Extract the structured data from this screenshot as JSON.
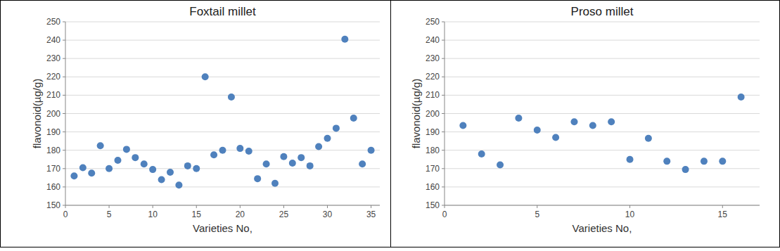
{
  "chart_data": [
    {
      "type": "scatter",
      "title": "Foxtail millet",
      "x_label": "Varieties No,",
      "y_label": "flavonoid(µg/g)",
      "x": [
        1,
        2,
        3,
        4,
        5,
        6,
        7,
        8,
        9,
        10,
        11,
        12,
        13,
        14,
        15,
        16,
        17,
        18,
        19,
        20,
        21,
        22,
        23,
        24,
        25,
        26,
        27,
        28,
        29,
        30,
        31,
        32,
        33,
        34,
        35
      ],
      "values": [
        166,
        170.5,
        167.5,
        182.5,
        170,
        174.5,
        180.5,
        176,
        172.5,
        169.5,
        164,
        168,
        161,
        171.5,
        170,
        220,
        177.5,
        180,
        209,
        181,
        179.5,
        164.5,
        172.5,
        162,
        176.5,
        173,
        176,
        171.5,
        182,
        186.5,
        192,
        240.5,
        197.5,
        172.5,
        180
      ],
      "xlim": [
        0,
        36
      ],
      "ylim": [
        150,
        250
      ],
      "xticks": [
        0,
        5,
        10,
        15,
        20,
        25,
        30,
        35
      ],
      "yticks": [
        150,
        160,
        170,
        180,
        190,
        200,
        210,
        220,
        230,
        240,
        250
      ],
      "grid": true,
      "color": "#4f81bd",
      "marker": "circle"
    },
    {
      "type": "scatter",
      "title": "Proso millet",
      "x_label": "Varieties No,",
      "y_label": "flavonoid(µg/g)",
      "x": [
        1,
        2,
        3,
        4,
        5,
        6,
        7,
        8,
        9,
        10,
        11,
        12,
        13,
        14,
        15,
        16
      ],
      "values": [
        193.5,
        178,
        172,
        197.5,
        191,
        187,
        195.5,
        193.5,
        195.5,
        175,
        186.5,
        174,
        169.5,
        174,
        174,
        209
      ],
      "xlim": [
        0,
        17
      ],
      "ylim": [
        150,
        250
      ],
      "xticks": [
        0,
        5,
        10,
        15
      ],
      "yticks": [
        150,
        160,
        170,
        180,
        190,
        200,
        210,
        220,
        230,
        240,
        250
      ],
      "grid": true,
      "color": "#4f81bd",
      "marker": "circle"
    }
  ]
}
